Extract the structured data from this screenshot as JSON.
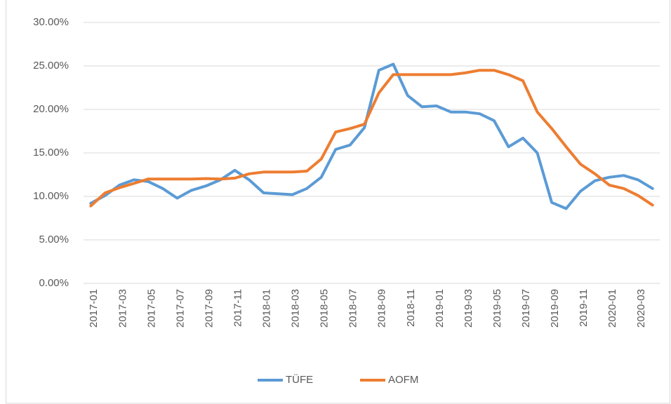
{
  "chart_data": {
    "type": "line",
    "categories": [
      "2017-01",
      null,
      "2017-03",
      null,
      "2017-05",
      null,
      "2017-07",
      null,
      "2017-09",
      null,
      "2017-11",
      null,
      "2018-01",
      null,
      "2018-03",
      null,
      "2018-05",
      null,
      "2018-07",
      null,
      "2018-09",
      null,
      "2018-11",
      null,
      "2019-01",
      null,
      "2019-03",
      null,
      "2019-05",
      null,
      "2019-07",
      null,
      "2019-09",
      null,
      "2019-11",
      null,
      "2020-01",
      null,
      "2020-03",
      null
    ],
    "series": [
      {
        "name": "TÜFE",
        "color": "#5b9bd5",
        "values": [
          9.2,
          10.1,
          11.3,
          11.9,
          11.7,
          10.9,
          9.8,
          10.7,
          11.2,
          11.9,
          13.0,
          11.9,
          10.4,
          10.3,
          10.2,
          10.9,
          12.2,
          15.4,
          15.9,
          17.9,
          24.5,
          25.2,
          21.6,
          20.3,
          20.4,
          19.7,
          19.7,
          19.5,
          18.7,
          15.7,
          16.7,
          15.0,
          9.3,
          8.6,
          10.6,
          11.8,
          12.2,
          12.4,
          11.9,
          10.9
        ]
      },
      {
        "name": "AOFM",
        "color": "#ed7d31",
        "values": [
          8.9,
          10.4,
          11.0,
          11.5,
          12.0,
          12.0,
          12.0,
          12.0,
          12.05,
          12.0,
          12.1,
          12.6,
          12.8,
          12.8,
          12.8,
          12.9,
          14.3,
          17.4,
          17.8,
          18.3,
          21.9,
          24.0,
          24.0,
          24.0,
          24.0,
          24.0,
          24.2,
          24.5,
          24.5,
          24.0,
          23.3,
          19.7,
          17.8,
          15.7,
          13.7,
          12.6,
          11.3,
          10.9,
          10.1,
          9.0
        ]
      }
    ],
    "ylim": [
      0,
      30
    ],
    "yticks": [
      {
        "value": 0,
        "label": "0.00%"
      },
      {
        "value": 5,
        "label": "5.00%"
      },
      {
        "value": 10,
        "label": "10.00%"
      },
      {
        "value": 15,
        "label": "15.00%"
      },
      {
        "value": 20,
        "label": "20.00%"
      },
      {
        "value": 25,
        "label": "25.00%"
      },
      {
        "value": 30,
        "label": "30.00%"
      }
    ],
    "grid": true,
    "legend": "bottom"
  }
}
